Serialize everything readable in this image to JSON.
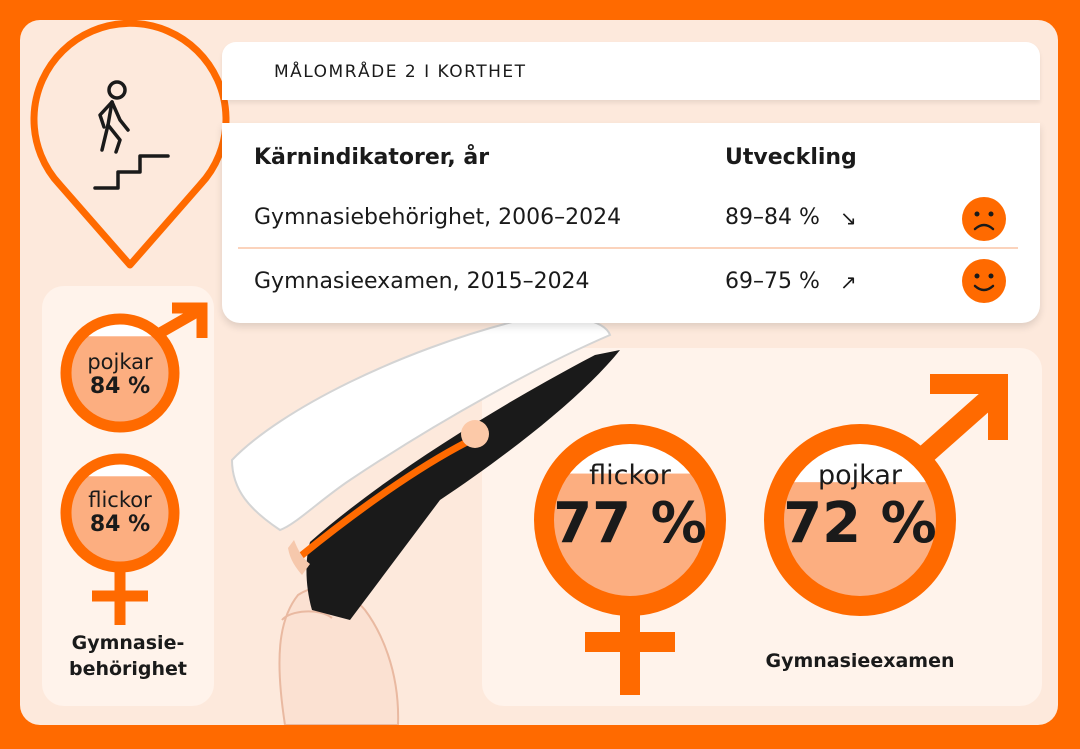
{
  "header": {
    "title": "MÅLOMRÅDE 2 I KORTHET"
  },
  "table": {
    "col_indicator": "Kärnindikatorer, år",
    "col_trend": "Utveckling",
    "rows": [
      {
        "indicator": "Gymnasiebehörighet, 2006–2024",
        "trend": "89–84 %",
        "arrow": "↘",
        "mood": "sad"
      },
      {
        "indicator": "Gymnasieexamen, 2015–2024",
        "trend": "69–75 %",
        "arrow": "↗",
        "mood": "happy"
      }
    ]
  },
  "behorighet": {
    "boys_label": "pojkar",
    "boys_value": "84 %",
    "boys_fraction": 0.84,
    "girls_label": "flickor",
    "girls_value": "84 %",
    "girls_fraction": 0.84,
    "caption_line1": "Gymnasie-",
    "caption_line2": "behörighet"
  },
  "examen": {
    "girls_label": "flickor",
    "girls_value": "77 %",
    "girls_fraction": 0.77,
    "boys_label": "pojkar",
    "boys_value": "72 %",
    "boys_fraction": 0.72,
    "caption": "Gymnasieexamen"
  },
  "colors": {
    "orange": "#ff6a00",
    "peach_fill": "#fcae80",
    "card_bg": "#fde9dc",
    "panel_bg": "#fff3eb"
  },
  "icons": [
    "location-pin-icon",
    "stairs-walker-icon",
    "sad-face-icon",
    "happy-face-icon",
    "male-symbol-icon",
    "female-symbol-icon",
    "student-cap-illustration"
  ]
}
